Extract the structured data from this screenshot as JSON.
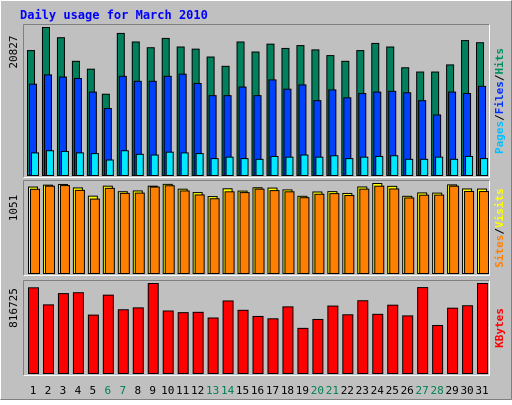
{
  "chart_data": {
    "type": "bar",
    "title": "Daily usage for March 2010",
    "days": [
      "1",
      "2",
      "3",
      "4",
      "5",
      "6",
      "7",
      "8",
      "9",
      "10",
      "11",
      "12",
      "13",
      "14",
      "15",
      "16",
      "17",
      "18",
      "19",
      "20",
      "21",
      "22",
      "23",
      "24",
      "25",
      "26",
      "27",
      "28",
      "29",
      "30",
      "31"
    ],
    "weekend_days": [
      "6",
      "7",
      "13",
      "14",
      "20",
      "21",
      "27",
      "28"
    ],
    "panels": [
      {
        "id": "top",
        "max_label": "20827",
        "ymax": 20827,
        "right_label": [
          "Pages",
          "/",
          "Files",
          "/",
          "Hits"
        ],
        "right_label_colors": [
          "#00c0ff",
          "#000000",
          "#0030ff",
          "#000000",
          "#009060"
        ],
        "series": [
          {
            "name": "Hits",
            "color": "#00805c",
            "values": [
              17600,
              20827,
              19400,
              16100,
              15000,
              11500,
              20000,
              18800,
              18000,
              19300,
              18100,
              17800,
              16700,
              15400,
              18800,
              17400,
              18500,
              17900,
              18300,
              17700,
              16900,
              16100,
              17600,
              18600,
              18100,
              15200,
              14600,
              14600,
              15600,
              19000,
              18700
            ]
          },
          {
            "name": "Files",
            "color": "#0040ff",
            "values": [
              12900,
              14200,
              13900,
              13700,
              11800,
              9500,
              14000,
              13300,
              13300,
              14000,
              14300,
              13000,
              11300,
              11300,
              12500,
              11300,
              13500,
              12200,
              12800,
              10600,
              12100,
              11000,
              11600,
              11800,
              11900,
              11700,
              10600,
              8600,
              11800,
              11600,
              12600
            ]
          },
          {
            "name": "Pages",
            "color": "#00e8ff",
            "values": [
              3300,
              3600,
              3500,
              3300,
              3200,
              2300,
              3600,
              3100,
              3000,
              3400,
              3300,
              3200,
              2500,
              2700,
              2500,
              2400,
              2800,
              2700,
              3000,
              2700,
              2900,
              2500,
              2700,
              2800,
              2900,
              2400,
              2400,
              2700,
              2400,
              2800,
              2500
            ]
          }
        ]
      },
      {
        "id": "middle",
        "max_label": "1051",
        "ymax": 1051,
        "right_label": [
          "Sites",
          "/",
          "Visits"
        ],
        "right_label_colors": [
          "#ff8000",
          "#000000",
          "#ffff00"
        ],
        "series": [
          {
            "name": "Visits",
            "color": "#ffff00",
            "values": [
              1010,
              1032,
              1040,
              1000,
              905,
              1020,
              956,
              965,
              1020,
              1041,
              985,
              946,
              900,
              990,
              963,
              1002,
              998,
              977,
              903,
              953,
              957,
              936,
              1011,
              1051,
              1018,
              903,
              942,
              940,
              1035,
              988,
              987
            ]
          },
          {
            "name": "Sites",
            "color": "#ff8000",
            "values": [
              984,
              1020,
              1027,
              972,
              871,
              995,
              937,
              940,
              1010,
              1025,
              965,
              919,
              875,
              955,
              946,
              986,
              969,
              955,
              887,
              927,
              934,
              913,
              986,
              1020,
              988,
              884,
              916,
              917,
              1020,
              959,
              958
            ]
          }
        ]
      },
      {
        "id": "bottom",
        "max_label": "816725",
        "ymax": 816725,
        "right_label": [
          "KBytes"
        ],
        "right_label_colors": [
          "#ff0000"
        ],
        "series": [
          {
            "name": "KBytes",
            "color": "#ff0000",
            "values": [
              778000,
              625000,
              726000,
              734000,
              533000,
              712000,
              581000,
              598000,
              816725,
              570000,
              555000,
              558000,
              507000,
              660000,
              576000,
              521000,
              500000,
              607000,
              414000,
              494000,
              614000,
              536000,
              662000,
              540000,
              622000,
              526000,
              780000,
              440000,
              595000,
              617000,
              816725
            ]
          }
        ]
      }
    ],
    "colors": {
      "background": "#c0c0c0",
      "frame_light": "#ffffff",
      "frame_dark": "#808080",
      "title": "#0000ff",
      "weekday_label": "#000000",
      "weekend_label": "#008050",
      "tick": "#000000"
    }
  }
}
